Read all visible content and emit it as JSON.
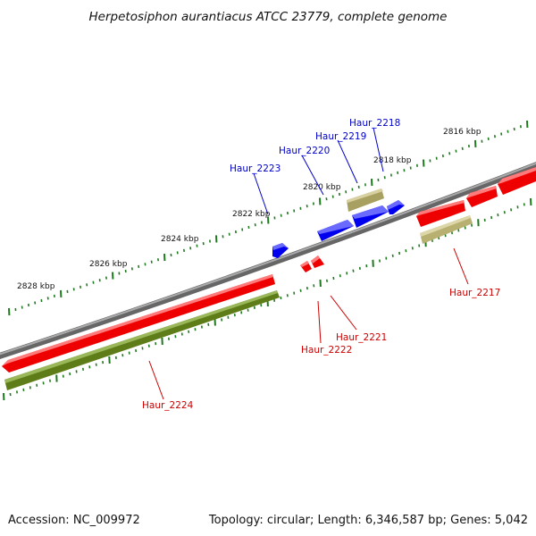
{
  "title": "Herpetosiphon aurantiacus ATCC 23779, complete genome",
  "footer": {
    "accession": "Accession: NC_009972",
    "summary": "Topology: circular; Length: 6,346,587 bp; Genes: 5,042"
  },
  "ruler": [
    {
      "label": "2816 kbp"
    },
    {
      "label": "2818 kbp"
    },
    {
      "label": "2820 kbp"
    },
    {
      "label": "2822 kbp"
    },
    {
      "label": "2824 kbp"
    },
    {
      "label": "2826 kbp"
    },
    {
      "label": "2828 kbp"
    }
  ],
  "genes": [
    {
      "label": "Haur_2218",
      "strand": "forward",
      "color": "#0000cc"
    },
    {
      "label": "Haur_2219",
      "strand": "forward",
      "color": "#0000cc"
    },
    {
      "label": "Haur_2220",
      "strand": "forward",
      "color": "#0000cc"
    },
    {
      "label": "Haur_2223",
      "strand": "forward",
      "color": "#0000cc"
    },
    {
      "label": "Haur_2217",
      "strand": "reverse",
      "color": "#cc0000"
    },
    {
      "label": "Haur_2221",
      "strand": "reverse",
      "color": "#cc0000"
    },
    {
      "label": "Haur_2222",
      "strand": "reverse",
      "color": "#cc0000"
    },
    {
      "label": "Haur_2224",
      "strand": "reverse",
      "color": "#cc0000"
    }
  ],
  "colors": {
    "forward_gene": "#0000ff",
    "reverse_gene": "#ff0000",
    "forward_feature": "#b8b070",
    "reverse_feature": "#6b8b1e",
    "backbone": "#808080",
    "ruler": "#1f7a1f"
  }
}
